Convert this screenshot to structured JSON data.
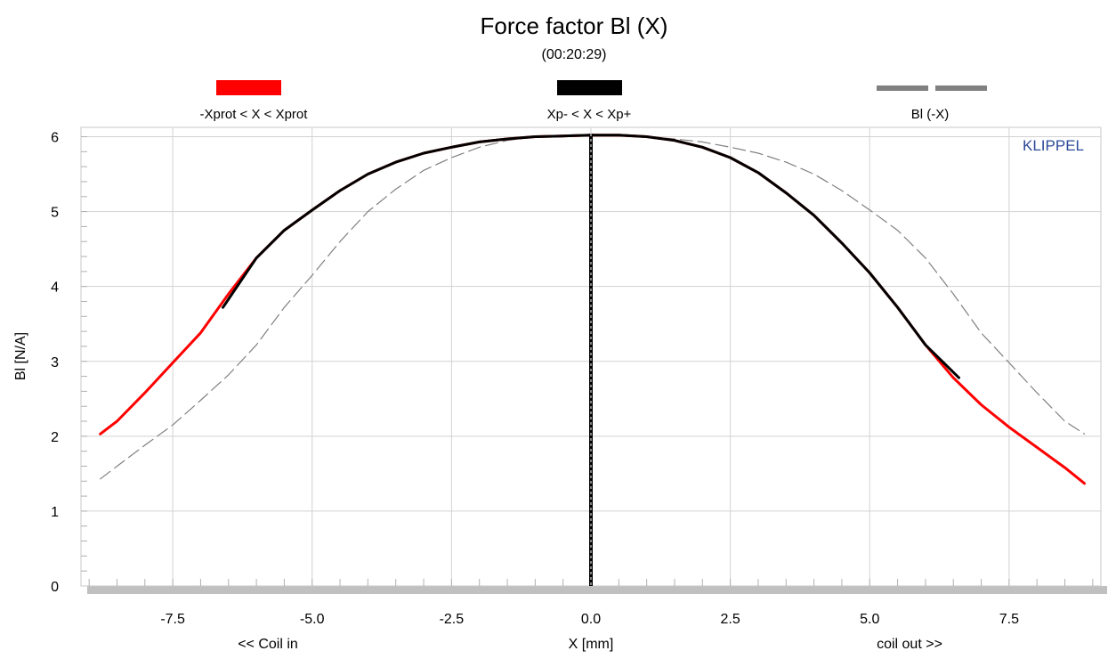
{
  "chart_data": {
    "type": "line",
    "title": "Force factor Bl (X)",
    "subtitle": "(00:20:29)",
    "xlabel": "X [mm]",
    "xlabel_left": "<< Coil in",
    "xlabel_right": "coil out >>",
    "ylabel": "Bl [N/A]",
    "watermark": "KLIPPEL",
    "xlim": [
      -9.3,
      9.3
    ],
    "ylim": [
      0,
      6.1
    ],
    "xticks": [
      -7.5,
      -5.0,
      -2.5,
      0.0,
      2.5,
      5.0,
      7.5
    ],
    "xtick_labels": [
      "-7.5",
      "-5.0",
      "-2.5",
      "0.0",
      "2.5",
      "5.0",
      "7.5"
    ],
    "yticks": [
      0,
      1,
      2,
      3,
      4,
      5,
      6
    ],
    "ytick_labels": [
      "0",
      "1",
      "2",
      "3",
      "4",
      "5",
      "6"
    ],
    "grid": true,
    "legend_placement": "top",
    "legend": [
      {
        "label": "-Xprot < X < Xprot",
        "color": "#ff0000",
        "style": "solid"
      },
      {
        "label": "Xp- < X < Xp+",
        "color": "#000000",
        "style": "solid"
      },
      {
        "label": "Bl (-X)",
        "color": "#808080",
        "style": "dashed"
      }
    ],
    "series": [
      {
        "name": "-Xprot < X < Xprot",
        "color": "#ff0000",
        "style": "solid",
        "x": [
          -8.8,
          -8.5,
          -8.0,
          -7.5,
          -7.0,
          -6.5,
          -6.0,
          -5.5,
          -5.0,
          -4.5,
          -4.0,
          -3.5,
          -3.0,
          -2.5,
          -2.0,
          -1.5,
          -1.0,
          -0.5,
          0.0,
          0.5,
          1.0,
          1.5,
          2.0,
          2.5,
          3.0,
          3.5,
          4.0,
          4.5,
          5.0,
          5.5,
          6.0,
          6.5,
          7.0,
          7.5,
          8.0,
          8.5,
          8.85
        ],
        "y": [
          2.03,
          2.2,
          2.58,
          2.98,
          3.38,
          3.9,
          4.38,
          4.75,
          5.02,
          5.28,
          5.5,
          5.66,
          5.78,
          5.86,
          5.93,
          5.97,
          6.0,
          6.01,
          6.02,
          6.02,
          6.0,
          5.95,
          5.86,
          5.72,
          5.52,
          5.25,
          4.95,
          4.58,
          4.18,
          3.72,
          3.22,
          2.78,
          2.42,
          2.12,
          1.85,
          1.58,
          1.37
        ]
      },
      {
        "name": "Xp- < X < Xp+",
        "color": "#000000",
        "style": "solid",
        "x": [
          -6.6,
          -6.0,
          -5.5,
          -5.0,
          -4.5,
          -4.0,
          -3.5,
          -3.0,
          -2.5,
          -2.0,
          -1.5,
          -1.0,
          -0.5,
          0.0,
          0.5,
          1.0,
          1.5,
          2.0,
          2.5,
          3.0,
          3.5,
          4.0,
          4.5,
          5.0,
          5.5,
          6.0,
          6.6
        ],
        "y": [
          3.72,
          4.38,
          4.75,
          5.02,
          5.28,
          5.5,
          5.66,
          5.78,
          5.86,
          5.93,
          5.97,
          6.0,
          6.01,
          6.02,
          6.02,
          6.0,
          5.95,
          5.86,
          5.72,
          5.52,
          5.25,
          4.95,
          4.58,
          4.18,
          3.72,
          3.22,
          2.78
        ]
      },
      {
        "name": "Bl (-X)",
        "color": "#808080",
        "style": "dashed",
        "x": [
          -8.8,
          -8.5,
          -8.0,
          -7.5,
          -7.0,
          -6.5,
          -6.0,
          -5.5,
          -5.0,
          -4.5,
          -4.0,
          -3.5,
          -3.0,
          -2.5,
          -2.0,
          -1.5,
          -1.0,
          -0.5,
          0.0,
          0.5,
          1.0,
          1.5,
          2.0,
          2.5,
          3.0,
          3.5,
          4.0,
          4.5,
          5.0,
          5.5,
          6.0,
          6.5,
          7.0,
          7.5,
          8.0,
          8.5,
          8.85
        ],
        "y": [
          1.43,
          1.6,
          1.88,
          2.15,
          2.48,
          2.82,
          3.22,
          3.72,
          4.15,
          4.6,
          5.0,
          5.3,
          5.55,
          5.72,
          5.86,
          5.95,
          6.0,
          6.02,
          6.02,
          6.01,
          6.0,
          5.97,
          5.93,
          5.86,
          5.78,
          5.66,
          5.5,
          5.28,
          5.02,
          4.75,
          4.38,
          3.9,
          3.38,
          2.98,
          2.58,
          2.2,
          2.03
        ]
      }
    ],
    "vertical_marker": {
      "x": 0.0,
      "color": "#000000"
    }
  }
}
